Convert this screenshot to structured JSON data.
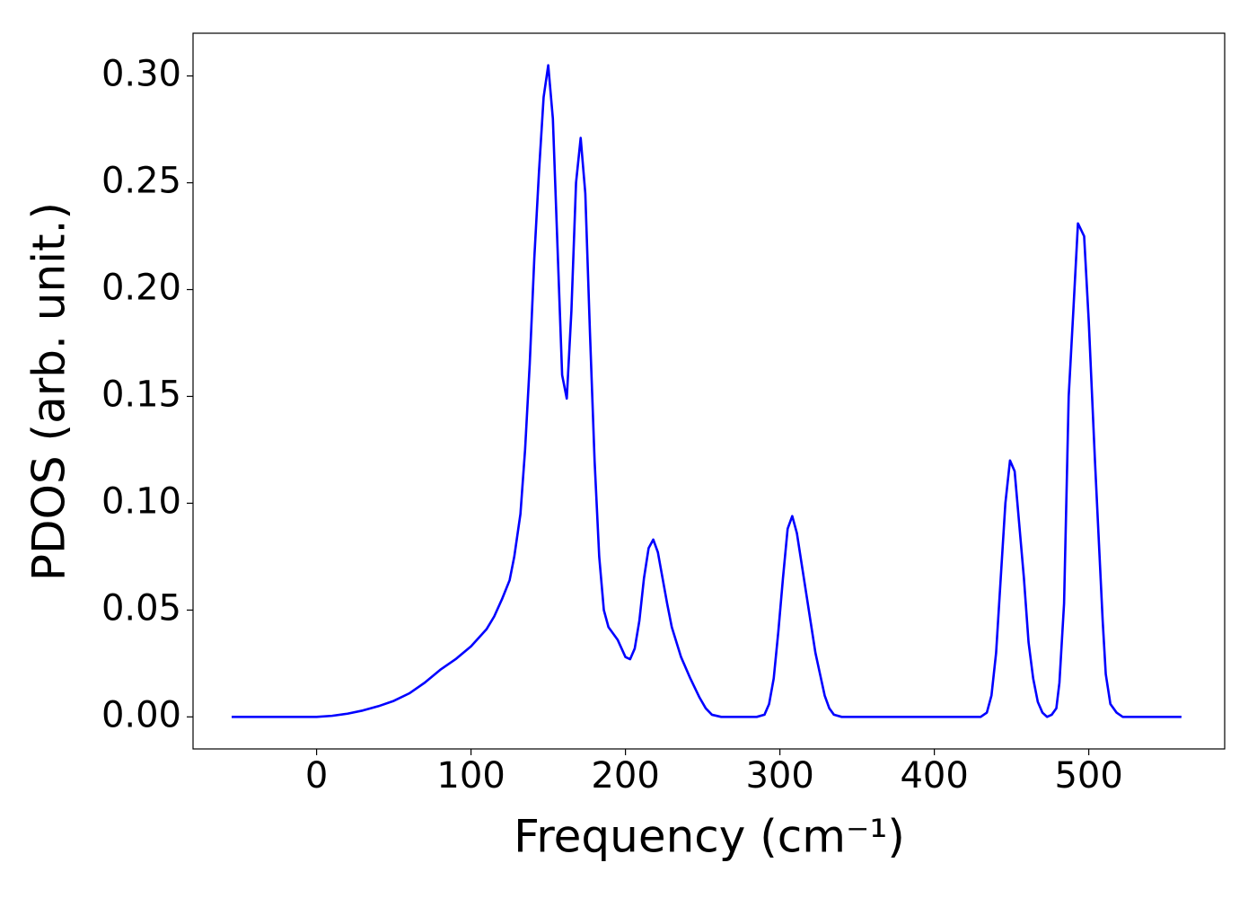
{
  "chart_data": {
    "type": "line",
    "x_label": "Frequency (cm⁻¹)",
    "y_label": "PDOS (arb. unit.)",
    "color": "#0000ff",
    "x": [
      -55,
      -40,
      -20,
      0,
      10,
      20,
      30,
      40,
      50,
      60,
      70,
      80,
      90,
      100,
      110,
      115,
      120,
      125,
      128,
      132,
      135,
      138,
      141,
      144,
      147,
      150,
      153,
      156,
      159,
      162,
      165,
      168,
      171,
      174,
      177,
      180,
      183,
      186,
      189,
      195,
      200,
      203,
      206,
      209,
      212,
      215,
      218,
      221,
      224,
      227,
      230,
      236,
      242,
      248,
      252,
      256,
      262,
      285,
      290,
      293,
      296,
      299,
      302,
      305,
      308,
      311,
      314,
      317,
      320,
      323,
      326,
      329,
      332,
      335,
      340,
      430,
      434,
      437,
      440,
      443,
      446,
      449,
      452,
      455,
      458,
      461,
      464,
      467,
      470,
      473,
      476,
      479,
      481,
      484,
      487,
      490,
      493,
      497,
      500,
      504,
      509,
      511,
      514,
      518,
      522,
      560
    ],
    "values": [
      0,
      0,
      0,
      0,
      0.0005,
      0.0015,
      0.003,
      0.005,
      0.0075,
      0.011,
      0.016,
      0.022,
      0.027,
      0.033,
      0.041,
      0.047,
      0.055,
      0.064,
      0.075,
      0.095,
      0.125,
      0.165,
      0.215,
      0.255,
      0.29,
      0.305,
      0.28,
      0.22,
      0.16,
      0.149,
      0.19,
      0.25,
      0.271,
      0.245,
      0.18,
      0.12,
      0.075,
      0.05,
      0.042,
      0.036,
      0.028,
      0.027,
      0.032,
      0.045,
      0.065,
      0.079,
      0.083,
      0.077,
      0.065,
      0.053,
      0.042,
      0.028,
      0.018,
      0.009,
      0.004,
      0.001,
      0,
      0,
      0.001,
      0.006,
      0.018,
      0.04,
      0.065,
      0.088,
      0.094,
      0.086,
      0.072,
      0.058,
      0.044,
      0.03,
      0.02,
      0.01,
      0.004,
      0.001,
      0,
      0,
      0.002,
      0.01,
      0.03,
      0.065,
      0.1,
      0.12,
      0.115,
      0.09,
      0.065,
      0.035,
      0.018,
      0.007,
      0.002,
      0,
      0.001,
      0.004,
      0.016,
      0.053,
      0.15,
      0.19,
      0.231,
      0.225,
      0.185,
      0.12,
      0.045,
      0.02,
      0.006,
      0.002,
      0,
      0
    ],
    "xlim": [
      -80,
      588
    ],
    "ylim": [
      -0.015,
      0.32
    ],
    "xticks": [
      0,
      100,
      200,
      300,
      400,
      500
    ],
    "yticks": [
      {
        "value": 0,
        "label": "0.00"
      },
      {
        "value": 0.05,
        "label": "0.05"
      },
      {
        "value": 0.1,
        "label": "0.10"
      },
      {
        "value": 0.15,
        "label": "0.15"
      },
      {
        "value": 0.2,
        "label": "0.20"
      },
      {
        "value": 0.25,
        "label": "0.25"
      },
      {
        "value": 0.3,
        "label": "0.30"
      }
    ],
    "grid": false
  }
}
